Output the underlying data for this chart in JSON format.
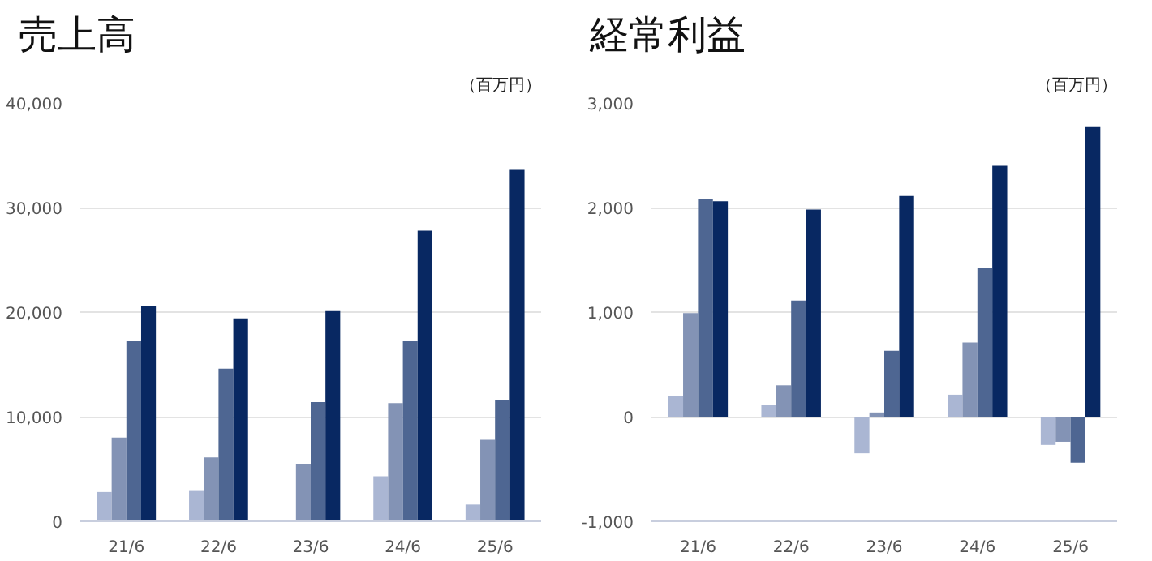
{
  "chart_data": [
    {
      "type": "bar",
      "title": "売上高",
      "annotations": [
        "（百万円）"
      ],
      "categories": [
        "21/6",
        "22/6",
        "23/6",
        "24/6",
        "25/6"
      ],
      "series": [
        {
          "color": "#aab6d3",
          "values": [
            2800,
            2900,
            null,
            4300,
            1600
          ]
        },
        {
          "color": "#8393b5",
          "values": [
            8000,
            6100,
            5500,
            11300,
            7800
          ]
        },
        {
          "color": "#4e6692",
          "values": [
            17200,
            14600,
            11400,
            17200,
            11600
          ]
        },
        {
          "color": "#082862",
          "values": [
            20600,
            19400,
            20100,
            27800,
            33600
          ]
        }
      ],
      "ylim": [
        0,
        40000
      ],
      "yticks": [
        {
          "value": 0,
          "label": "0"
        },
        {
          "value": 10000,
          "label": "10,000"
        },
        {
          "value": 20000,
          "label": "20,000"
        },
        {
          "value": 30000,
          "label": "30,000"
        },
        {
          "value": 40000,
          "label": "40,000"
        }
      ],
      "grid": "y"
    },
    {
      "type": "bar",
      "title": "経常利益",
      "annotations": [
        "（百万円）"
      ],
      "categories": [
        "21/6",
        "22/6",
        "23/6",
        "24/6",
        "25/6"
      ],
      "series": [
        {
          "color": "#aab6d3",
          "values": [
            200,
            110,
            -350,
            210,
            -270
          ]
        },
        {
          "color": "#8393b5",
          "values": [
            990,
            300,
            40,
            710,
            -240
          ]
        },
        {
          "color": "#4e6692",
          "values": [
            2080,
            1110,
            630,
            1420,
            -440
          ]
        },
        {
          "color": "#082862",
          "values": [
            2060,
            1980,
            2110,
            2400,
            2770
          ]
        }
      ],
      "ylim": [
        -1000,
        3000
      ],
      "yticks": [
        {
          "value": -1000,
          "label": "-1,000"
        },
        {
          "value": 0,
          "label": "0"
        },
        {
          "value": 1000,
          "label": "1,000"
        },
        {
          "value": 2000,
          "label": "2,000"
        },
        {
          "value": 3000,
          "label": "3,000"
        }
      ],
      "grid": "y"
    }
  ]
}
